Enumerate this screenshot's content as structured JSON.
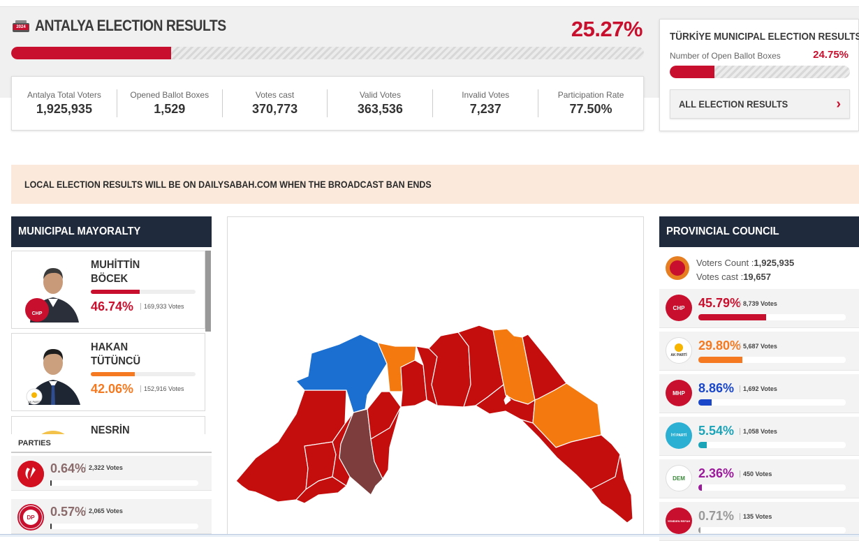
{
  "header": {
    "title": "ANTALYA ELECTION RESULTS",
    "ballot_year": "2024",
    "percent": "25.27%",
    "progress": 0.2527
  },
  "stats": [
    {
      "label": "Antalya Total Voters",
      "value": "1,925,935"
    },
    {
      "label": "Opened Ballot Boxes",
      "value": "1,529"
    },
    {
      "label": "Votes cast",
      "value": "370,773"
    },
    {
      "label": "Valid Votes",
      "value": "363,536"
    },
    {
      "label": "Invalid Votes",
      "value": "7,237"
    },
    {
      "label": "Participation Rate",
      "value": "77.50%"
    }
  ],
  "turkiye": {
    "title": "TÜRKİYE MUNICIPAL ELECTION RESULTS",
    "subtitle": "Number of Open Ballot Boxes",
    "percent": "24.75%",
    "progress": 0.2475,
    "button_label": "ALL ELECTION RESULTS",
    "chevron_icon": "chevron-right-icon"
  },
  "banner": {
    "text": "LOCAL ELECTION RESULTS WILL BE ON DAILYSABAH.COM WHEN THE BROADCAST BAN ENDS"
  },
  "mayoralty": {
    "heading": "MUNICIPAL MAYORALTY",
    "candidates": [
      {
        "name_line1": "MUHİTTİN",
        "name_line2": "BÖCEK",
        "percent": "46.74%",
        "votes": "169,933 Votes",
        "share": 0.4674,
        "color": "#c8102e",
        "party_badge": "CHP"
      },
      {
        "name_line1": "HAKAN",
        "name_line2": "TÜTÜNCÜ",
        "percent": "42.06%",
        "votes": "152,916 Votes",
        "share": 0.4206,
        "color": "#f47920",
        "party_badge": "AK PARTİ"
      },
      {
        "name_line1": "NESRİN",
        "name_line2": "",
        "percent": "",
        "votes": "",
        "share": 0,
        "color": "#999999",
        "party_badge": ""
      }
    ]
  },
  "parties": {
    "heading": "PARTIES",
    "rows": [
      {
        "percent": "0.64%",
        "votes": "2,322 Votes",
        "share": 0.0064,
        "logo_text": "YENİDEN REFAH"
      },
      {
        "percent": "0.57%",
        "votes": "2,065 Votes",
        "share": 0.0057,
        "logo_text": "DP"
      }
    ]
  },
  "provincial": {
    "heading": "PROVINCIAL COUNCIL",
    "voters_label": "Voters Count :",
    "voters_value": "1,925,935",
    "cast_label": "Votes cast :",
    "cast_value": "19,657",
    "rows": [
      {
        "percent": "45.79%",
        "votes": "8,739 Votes",
        "share": 0.4579,
        "color": "#c8102e",
        "logo_bg": "#c8102e",
        "logo_text": "CHP"
      },
      {
        "percent": "29.80%",
        "votes": "5,687 Votes",
        "share": 0.298,
        "color": "#f47920",
        "logo_bg": "#ffffff",
        "logo_text": "AK PARTİ"
      },
      {
        "percent": "8.86%",
        "votes": "1,692 Votes",
        "share": 0.0886,
        "color": "#1a47c9",
        "logo_bg": "#c8102e",
        "logo_text": "MHP"
      },
      {
        "percent": "5.54%",
        "votes": "1,058 Votes",
        "share": 0.0554,
        "color": "#1ba3b8",
        "logo_bg": "#2bb0d4",
        "logo_text": "İYİ PARTİ"
      },
      {
        "percent": "2.36%",
        "votes": "450 Votes",
        "share": 0.0236,
        "color": "#9b1a9b",
        "logo_bg": "#ffffff",
        "logo_text": "DEM"
      },
      {
        "percent": "0.71%",
        "votes": "135 Votes",
        "share": 0.0071,
        "color": "#999999",
        "logo_bg": "#c8102e",
        "logo_text": "YENİDEN REFAH"
      }
    ]
  },
  "map": {
    "colors": {
      "chp": "#c40d0d",
      "akp": "#f47a0f",
      "iyi": "#1a6fd0",
      "other": "#7d3d3d"
    }
  }
}
